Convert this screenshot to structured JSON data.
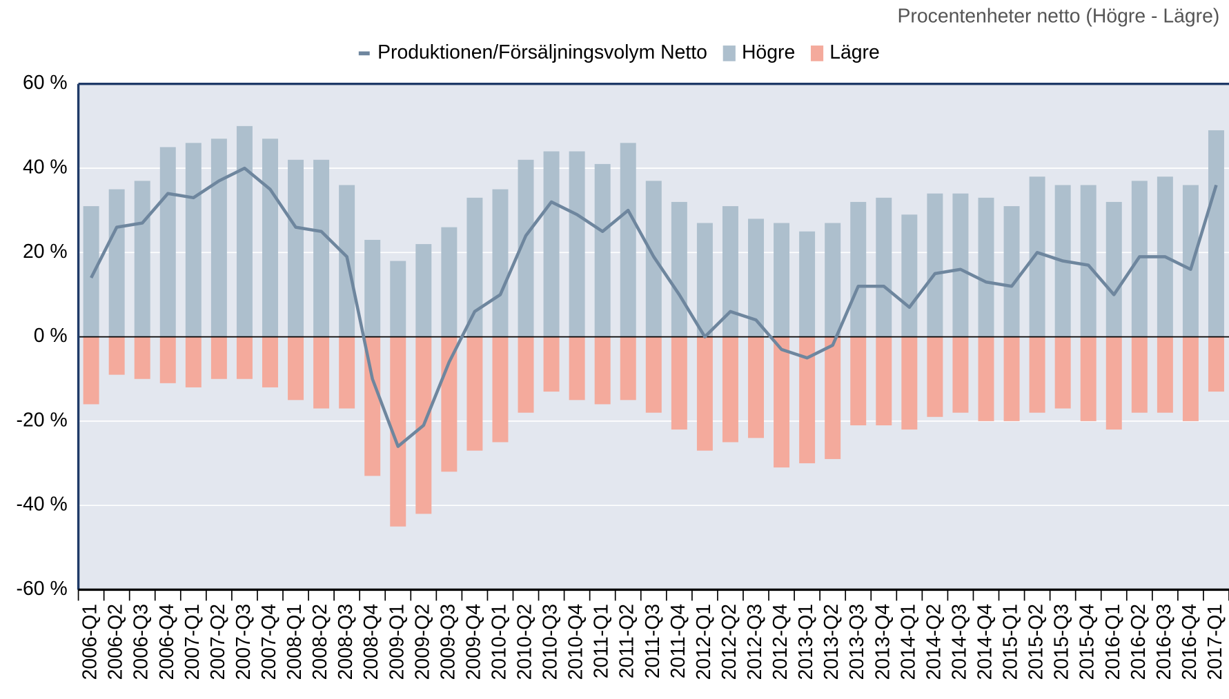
{
  "chart_data": {
    "type": "bar_line",
    "title": "Procentenheter netto (Högre - Lägre)",
    "categories": [
      "2006-Q1",
      "2006-Q2",
      "2006-Q3",
      "2006-Q4",
      "2007-Q1",
      "2007-Q2",
      "2007-Q3",
      "2007-Q4",
      "2008-Q1",
      "2008-Q2",
      "2008-Q3",
      "2008-Q4",
      "2009-Q1",
      "2009-Q2",
      "2009-Q3",
      "2009-Q4",
      "2010-Q1",
      "2010-Q2",
      "2010-Q3",
      "2010-Q4",
      "2011-Q1",
      "2011-Q2",
      "2011-Q3",
      "2011-Q4",
      "2012-Q1",
      "2012-Q2",
      "2012-Q3",
      "2012-Q4",
      "2013-Q1",
      "2013-Q2",
      "2013-Q3",
      "2013-Q4",
      "2014-Q1",
      "2014-Q2",
      "2014-Q3",
      "2014-Q4",
      "2015-Q1",
      "2015-Q2",
      "2015-Q3",
      "2015-Q4",
      "2016-Q1",
      "2016-Q2",
      "2016-Q3",
      "2016-Q4",
      "2017-Q1"
    ],
    "series": [
      {
        "name": "Produktionen/Försäljningsvolym Netto",
        "type": "line",
        "color": "#6e869e",
        "values": [
          14,
          26,
          27,
          34,
          33,
          37,
          40,
          35,
          26,
          25,
          19,
          -10,
          -26,
          -21,
          -6,
          6,
          10,
          24,
          32,
          29,
          25,
          30,
          19,
          10,
          0,
          6,
          4,
          -3,
          -5,
          -2,
          12,
          12,
          7,
          15,
          16,
          13,
          12,
          20,
          18,
          17,
          10,
          19,
          19,
          16,
          36
        ]
      },
      {
        "name": "Högre",
        "type": "bar",
        "color": "#adbfcd",
        "values": [
          31,
          35,
          37,
          45,
          46,
          47,
          50,
          47,
          42,
          42,
          36,
          23,
          18,
          22,
          26,
          33,
          35,
          42,
          44,
          44,
          41,
          46,
          37,
          32,
          27,
          31,
          28,
          27,
          25,
          27,
          32,
          33,
          29,
          34,
          34,
          33,
          31,
          38,
          36,
          36,
          32,
          37,
          38,
          36,
          49
        ]
      },
      {
        "name": "Lägre",
        "type": "bar",
        "color": "#f4aa9c",
        "values": [
          -16,
          -9,
          -10,
          -11,
          -12,
          -10,
          -10,
          -12,
          -15,
          -17,
          -17,
          -33,
          -45,
          -42,
          -32,
          -27,
          -25,
          -18,
          -13,
          -15,
          -16,
          -15,
          -18,
          -22,
          -27,
          -25,
          -24,
          -31,
          -30,
          -29,
          -21,
          -21,
          -22,
          -19,
          -18,
          -20,
          -20,
          -18,
          -17,
          -20,
          -22,
          -18,
          -18,
          -20,
          -13
        ]
      }
    ],
    "ylim": [
      -60,
      60
    ],
    "yticks": [
      {
        "value": -60,
        "label": "-60 %"
      },
      {
        "value": -40,
        "label": "-40 %"
      },
      {
        "value": -20,
        "label": "-20 %"
      },
      {
        "value": 0,
        "label": "0 %"
      },
      {
        "value": 20,
        "label": "20 %"
      },
      {
        "value": 40,
        "label": "40 %"
      },
      {
        "value": 60,
        "label": "60 %"
      }
    ],
    "grid": true,
    "legend": "top"
  }
}
